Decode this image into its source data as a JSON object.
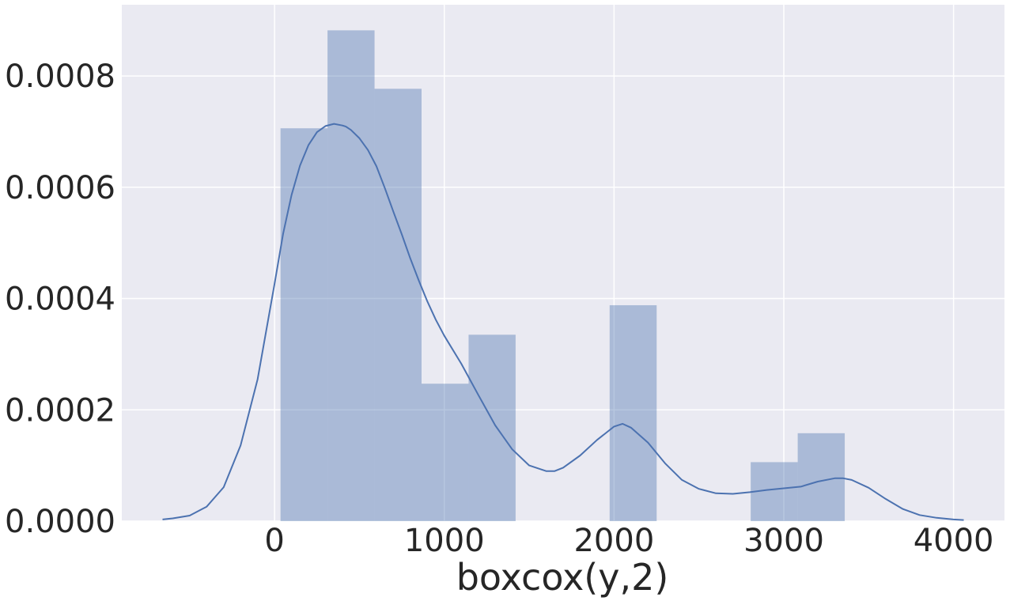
{
  "colors": {
    "plot_background": "#eaeaf2",
    "grid": "#ffffff",
    "bar_fill": "#4c72b0",
    "bar_opacity": 0.4,
    "kde_line": "#4c72b0",
    "text": "#262626"
  },
  "chart_data": {
    "type": "bar",
    "title": "",
    "xlabel": "boxcox(y,2)",
    "ylabel": "",
    "xlim": [
      -900,
      4300
    ],
    "ylim": [
      0,
      0.000928
    ],
    "grid": true,
    "xticks": [
      0,
      1000,
      2000,
      3000,
      4000
    ],
    "xtick_labels": [
      "0",
      "1000",
      "2000",
      "3000",
      "4000"
    ],
    "yticks": [
      0,
      0.0002,
      0.0004,
      0.0006,
      0.0008
    ],
    "ytick_labels": [
      "0.0000",
      "0.0002",
      "0.0004",
      "0.0006",
      "0.0008"
    ],
    "histogram": {
      "bin_edges": [
        35,
        312,
        589,
        866,
        1143,
        1420,
        1697,
        1974,
        2251,
        2528,
        2805,
        3082,
        3359
      ],
      "density": [
        0.000706,
        0.000882,
        0.000777,
        0.000247,
        0.000335,
        0,
        0,
        0.000388,
        0,
        0,
        0.000106,
        0.000158
      ]
    },
    "kde": {
      "x": [
        -660,
        -600,
        -500,
        -400,
        -300,
        -200,
        -100,
        0,
        50,
        100,
        150,
        200,
        250,
        300,
        350,
        400,
        420,
        450,
        500,
        550,
        600,
        650,
        700,
        750,
        800,
        850,
        900,
        950,
        1000,
        1100,
        1200,
        1300,
        1400,
        1500,
        1600,
        1650,
        1700,
        1800,
        1900,
        2000,
        2050,
        2100,
        2200,
        2300,
        2400,
        2500,
        2600,
        2700,
        2800,
        2900,
        3000,
        3100,
        3200,
        3300,
        3350,
        3400,
        3500,
        3600,
        3700,
        3800,
        3900,
        4000,
        4060
      ],
      "y": [
        3e-06,
        5e-06,
        1e-05,
        2.6e-05,
        6.1e-05,
        0.000136,
        0.000255,
        0.000427,
        0.000516,
        0.000586,
        0.000639,
        0.000676,
        0.000699,
        0.00071,
        0.000714,
        0.000711,
        0.000709,
        0.000703,
        0.000688,
        0.000667,
        0.000638,
        0.000598,
        0.000556,
        0.000515,
        0.000472,
        0.000432,
        0.000395,
        0.000362,
        0.000333,
        0.000283,
        0.000227,
        0.000172,
        0.000129,
        0.0001,
        9e-05,
        9e-05,
        9.6e-05,
        0.000118,
        0.000146,
        0.00017,
        0.000175,
        0.000168,
        0.000141,
        0.000104,
        7.4e-05,
        5.8e-05,
        5e-05,
        4.9e-05,
        5.2e-05,
        5.6e-05,
        5.9e-05,
        6.2e-05,
        7.1e-05,
        7.7e-05,
        7.7e-05,
        7.4e-05,
        6e-05,
        4e-05,
        2.2e-05,
        1.1e-05,
        6e-06,
        3e-06,
        2e-06
      ]
    }
  }
}
